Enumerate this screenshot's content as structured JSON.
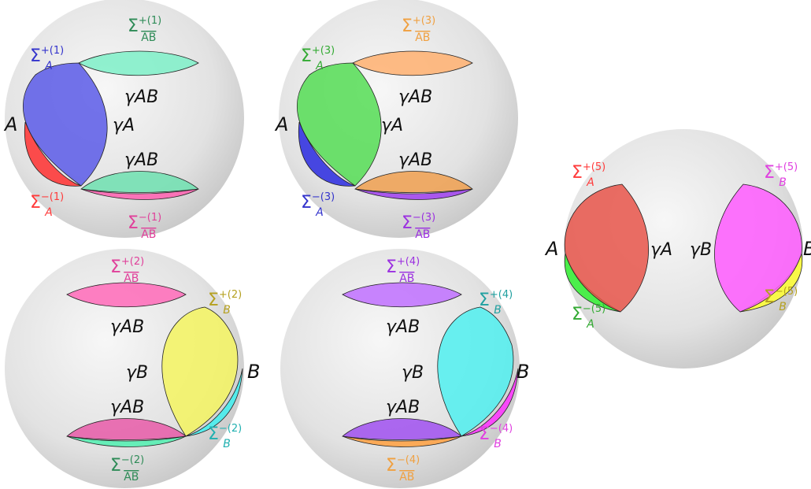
{
  "panels": [
    {
      "id": "p1",
      "labels": {
        "sigma_ab_top": {
          "text": "Σ",
          "sup": "+(1)",
          "sub": "AB",
          "color": "#2e8b57"
        },
        "sigma_a_top": {
          "text": "Σ",
          "sup": "+(1)",
          "sub": "A",
          "color": "#3333cc"
        },
        "sigma_a_bottom": {
          "text": "Σ",
          "sup": "−(1)",
          "sub": "A",
          "color": "#ff3b3b"
        },
        "sigma_ab_bottom": {
          "text": "Σ",
          "sup": "−(1)",
          "sub": "AB",
          "color": "#e0409a"
        },
        "gamma_ab_top": "γAB",
        "gamma_ab_bottom": "γAB",
        "gamma_mid": "γA",
        "point": "A"
      },
      "colors": {
        "top_lens": "#7ef0c8",
        "bottom_lens": "#6ee0b0",
        "bottom_sliver": "#ff5fb0",
        "side_main": "#5a5ae8",
        "side_sliver": "#ff3030"
      }
    },
    {
      "id": "p3",
      "labels": {
        "sigma_ab_top": {
          "text": "Σ",
          "sup": "+(3)",
          "sub": "AB",
          "color": "#f0a040"
        },
        "sigma_a_top": {
          "text": "Σ",
          "sup": "+(3)",
          "sub": "A",
          "color": "#33aa33"
        },
        "sigma_a_bottom": {
          "text": "Σ",
          "sup": "−(3)",
          "sub": "A",
          "color": "#3333cc"
        },
        "sigma_ab_bottom": {
          "text": "Σ",
          "sup": "−(3)",
          "sub": "AB",
          "color": "#9b30e0"
        },
        "gamma_ab_top": "γAB",
        "gamma_ab_bottom": "γAB",
        "gamma_mid": "γA",
        "point": "A"
      },
      "colors": {
        "top_lens": "#ffb070",
        "bottom_lens": "#f0a050",
        "bottom_sliver": "#a040f0",
        "side_main": "#55dd55",
        "side_sliver": "#2a2ae0"
      }
    },
    {
      "id": "p2",
      "labels": {
        "sigma_ab_top": {
          "text": "Σ",
          "sup": "+(2)",
          "sub": "AB",
          "color": "#e0409a"
        },
        "sigma_b_top": {
          "text": "Σ",
          "sup": "+(2)",
          "sub": "B",
          "color": "#b5a020"
        },
        "sigma_b_bottom": {
          "text": "Σ",
          "sup": "−(2)",
          "sub": "B",
          "color": "#20b0b0"
        },
        "sigma_ab_bottom": {
          "text": "Σ",
          "sup": "−(2)",
          "sub": "AB",
          "color": "#2e8b57"
        },
        "gamma_ab_top": "γAB",
        "gamma_ab_bottom": "γAB",
        "gamma_mid": "γB",
        "point": "B"
      },
      "colors": {
        "top_lens": "#ff6ab8",
        "bottom_lens": "#e85aa8",
        "bottom_sliver": "#50f0b0",
        "side_main": "#f5f560",
        "side_sliver": "#40f0f0"
      }
    },
    {
      "id": "p4",
      "labels": {
        "sigma_ab_top": {
          "text": "Σ",
          "sup": "+(4)",
          "sub": "AB",
          "color": "#9b30e0"
        },
        "sigma_b_top": {
          "text": "Σ",
          "sup": "+(4)",
          "sub": "B",
          "color": "#20a0a0"
        },
        "sigma_b_bottom": {
          "text": "Σ",
          "sup": "−(4)",
          "sub": "B",
          "color": "#e040e0"
        },
        "sigma_ab_bottom": {
          "text": "Σ",
          "sup": "−(4)",
          "sub": "AB",
          "color": "#f0a040"
        },
        "gamma_ab_top": "γAB",
        "gamma_ab_bottom": "γAB",
        "gamma_mid": "γB",
        "point": "B"
      },
      "colors": {
        "top_lens": "#c070ff",
        "bottom_lens": "#a050f0",
        "bottom_sliver": "#ffa040",
        "side_main": "#50f0f0",
        "side_sliver": "#ff30ff"
      }
    },
    {
      "id": "p5",
      "labels": {
        "sigma_a_top": {
          "text": "Σ",
          "sup": "+(5)",
          "sub": "A",
          "color": "#ff3b3b"
        },
        "sigma_a_bottom": {
          "text": "Σ",
          "sup": "−(5)",
          "sub": "A",
          "color": "#33aa33"
        },
        "sigma_b_top": {
          "text": "Σ",
          "sup": "+(5)",
          "sub": "B",
          "color": "#e040e0"
        },
        "sigma_b_bottom": {
          "text": "Σ",
          "sup": "−(5)",
          "sub": "B",
          "color": "#b5a020"
        },
        "gamma_a": "γA",
        "gamma_b": "γB",
        "point_a": "A",
        "point_b": "B"
      },
      "colors": {
        "a_main": "#e8554a",
        "a_sliver": "#30f030",
        "b_main": "#ff5cff",
        "b_sliver": "#ffff30"
      }
    }
  ]
}
